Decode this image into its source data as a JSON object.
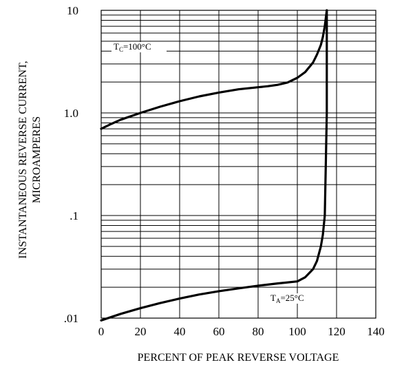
{
  "chart_data": {
    "type": "line",
    "title": "",
    "xlabel": "PERCENT OF PEAK REVERSE VOLTAGE",
    "ylabel": [
      "INSTANTANEOUS REVERSE CURRENT,",
      "MICROAMPERES"
    ],
    "xlim": [
      0,
      140
    ],
    "ylim": [
      0.01,
      10
    ],
    "y_scale": "log",
    "x_ticks": [
      0,
      20,
      40,
      60,
      80,
      100,
      120,
      140
    ],
    "x_tick_labels": [
      "0",
      "20",
      "40",
      "60",
      "80",
      "100",
      "120",
      "140"
    ],
    "y_ticks": [
      0.01,
      0.1,
      1,
      10
    ],
    "y_tick_labels": [
      ".01",
      ".1",
      "1.0",
      "10"
    ],
    "grid": true,
    "series": [
      {
        "annotation": {
          "prefix": "T",
          "subscript": "C",
          "suffix": "=100°C"
        },
        "x": [
          0,
          5,
          10,
          20,
          30,
          40,
          50,
          60,
          70,
          80,
          85,
          90,
          95,
          100,
          104,
          108,
          110,
          112,
          113,
          114,
          115
        ],
        "y": [
          0.7,
          0.78,
          0.86,
          1.0,
          1.15,
          1.3,
          1.45,
          1.58,
          1.7,
          1.78,
          1.82,
          1.88,
          1.98,
          2.2,
          2.5,
          3.1,
          3.7,
          4.6,
          5.5,
          7.0,
          10.0
        ]
      },
      {
        "annotation": {
          "prefix": "T",
          "subscript": "A",
          "suffix": "=25°C"
        },
        "x": [
          0,
          10,
          20,
          30,
          40,
          50,
          60,
          70,
          80,
          90,
          100,
          104,
          108,
          110,
          112,
          113,
          114,
          114.5,
          115,
          115,
          115
        ],
        "y": [
          0.0095,
          0.011,
          0.0125,
          0.014,
          0.0155,
          0.017,
          0.0183,
          0.0195,
          0.0207,
          0.0218,
          0.0228,
          0.025,
          0.03,
          0.036,
          0.05,
          0.065,
          0.1,
          0.3,
          1.0,
          5.0,
          10.0
        ]
      }
    ]
  }
}
